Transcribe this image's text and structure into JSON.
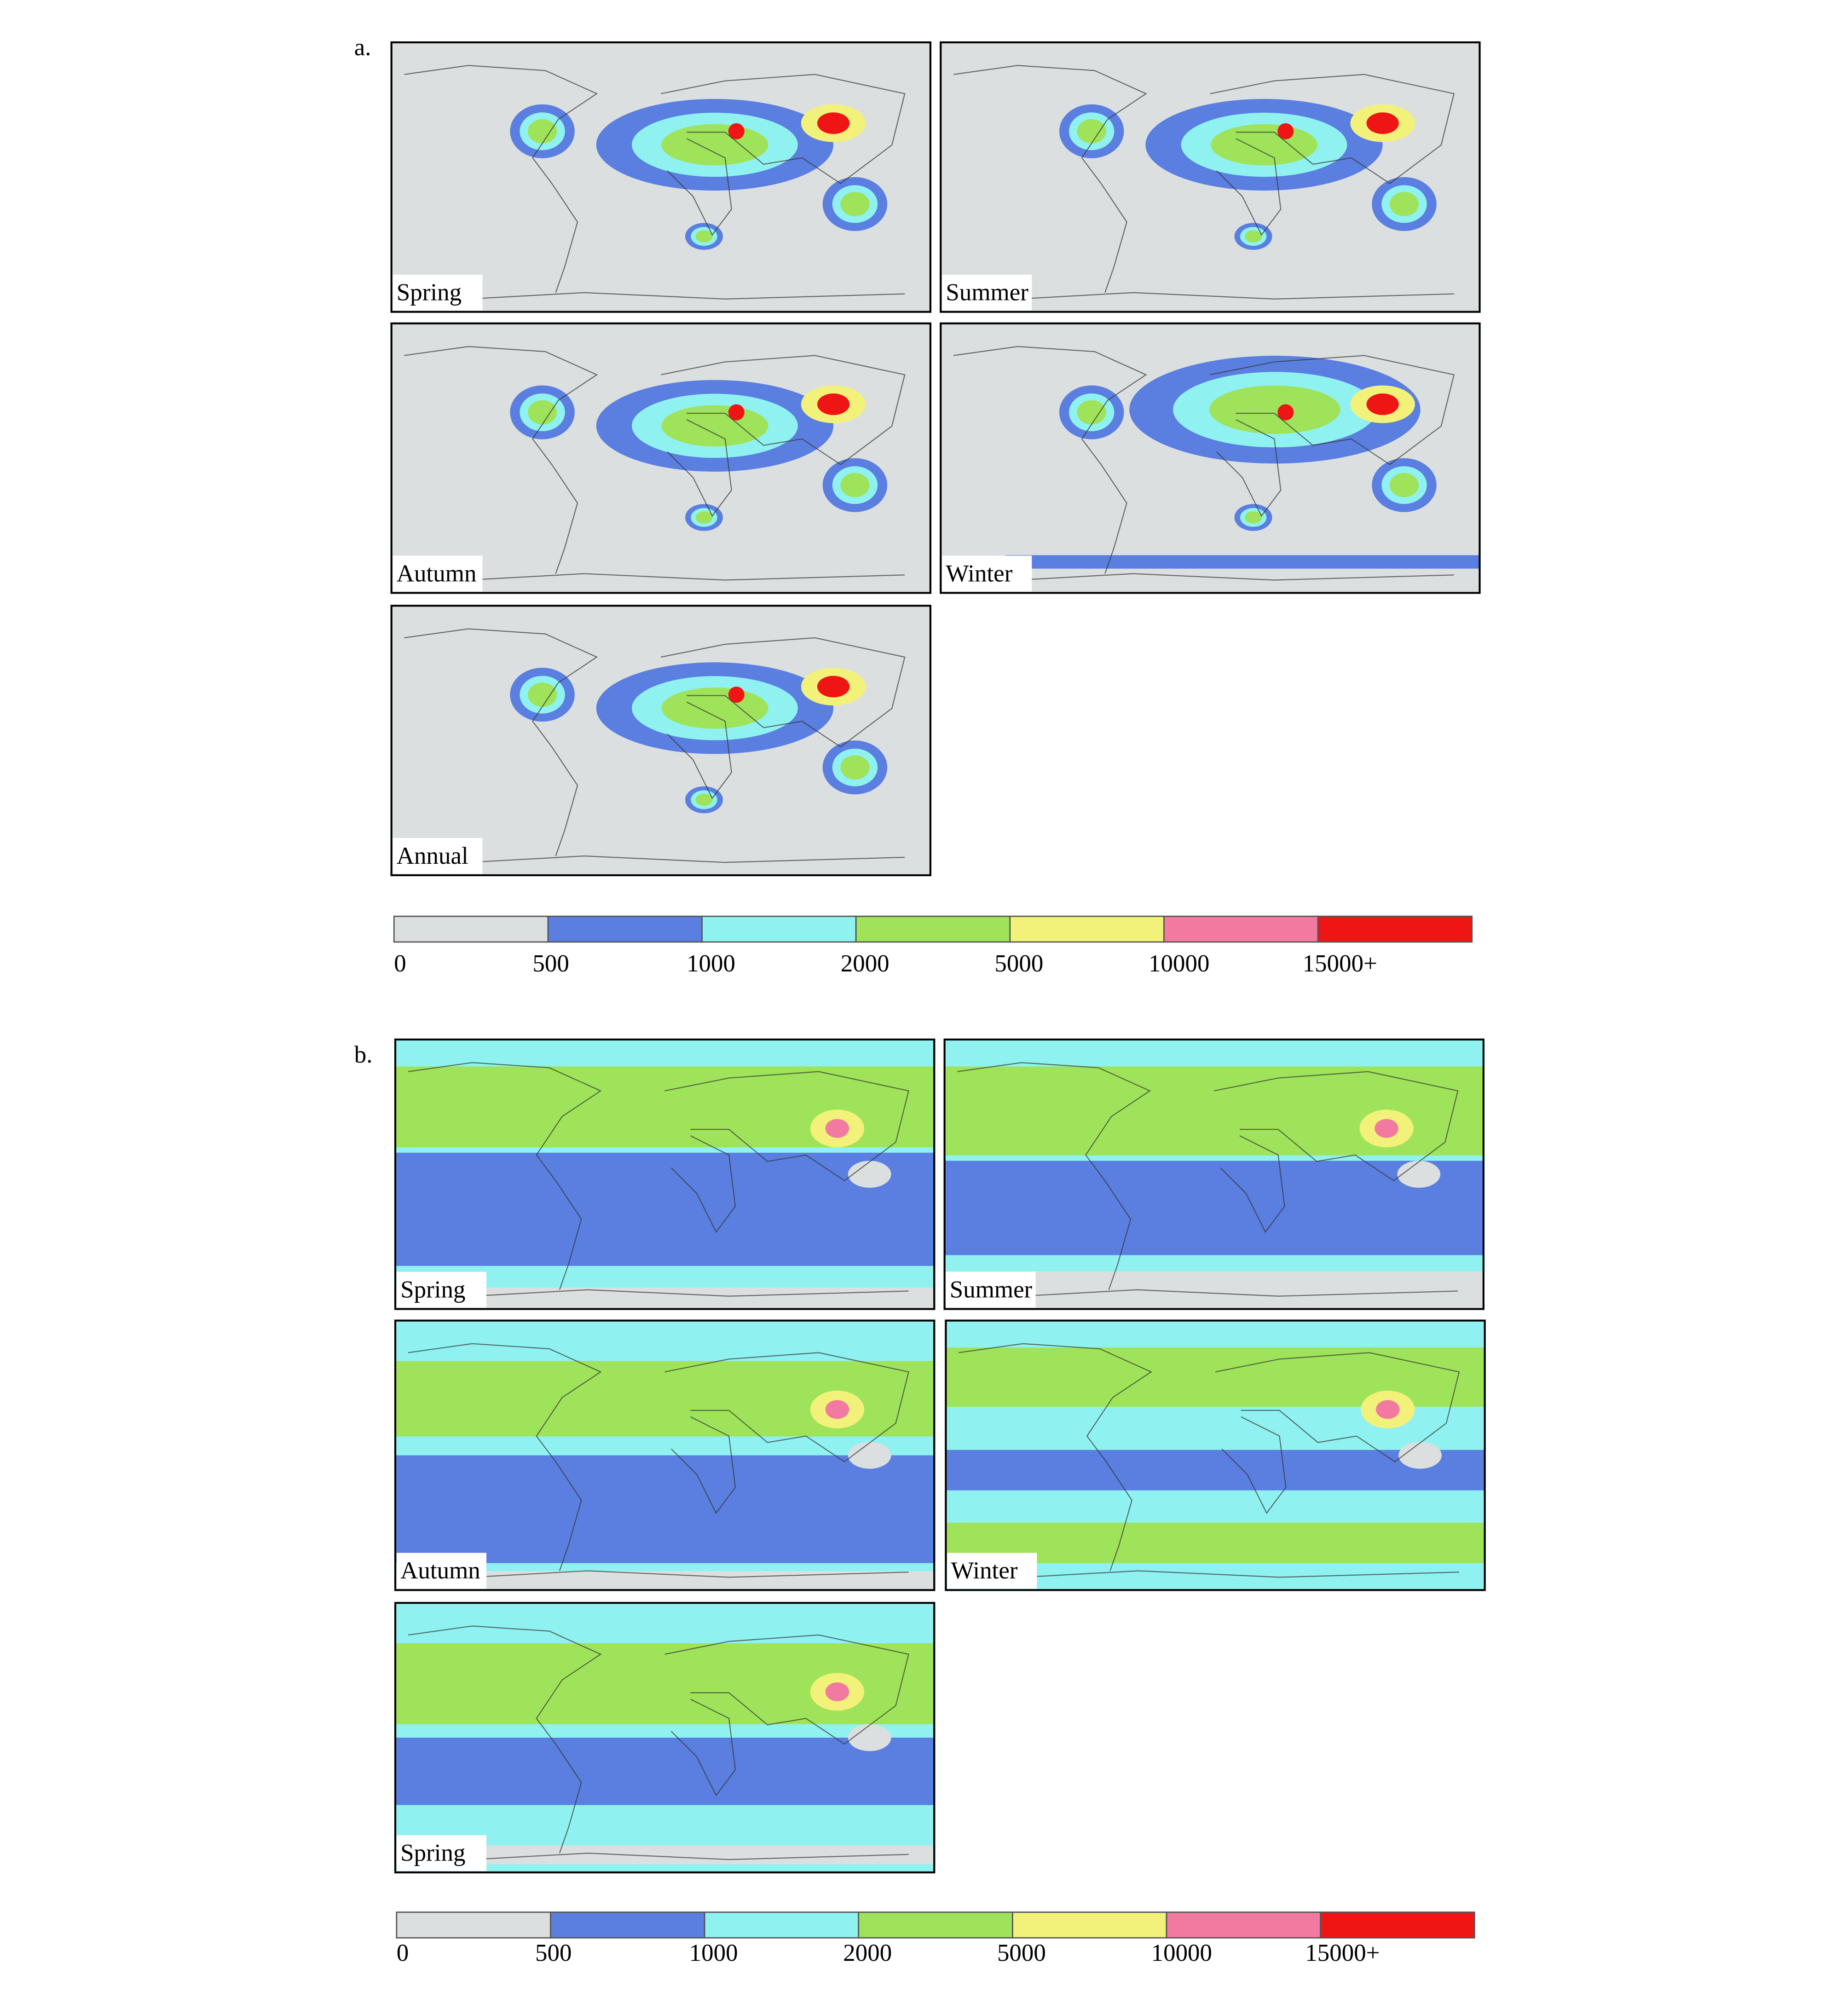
{
  "panels": [
    {
      "label": "a.",
      "maps": [
        {
          "label": "Spring"
        },
        {
          "label": "Summer"
        },
        {
          "label": "Autumn"
        },
        {
          "label": "Winter"
        },
        {
          "label": "Annual"
        }
      ],
      "legend": {
        "labels": [
          "0",
          "500",
          "1000",
          "2000",
          "5000",
          "10000",
          "15000+"
        ],
        "colors": [
          "#dcdfe0",
          "#5a7fe0",
          "#8ff2f0",
          "#9fe35a",
          "#f2f27a",
          "#f27aa0",
          "#f01515"
        ]
      }
    },
    {
      "label": "b.",
      "maps": [
        {
          "label": "Spring"
        },
        {
          "label": "Summer"
        },
        {
          "label": "Autumn"
        },
        {
          "label": "Winter"
        },
        {
          "label": "Spring"
        }
      ],
      "legend": {
        "labels": [
          "0",
          "500",
          "1000",
          "2000",
          "5000",
          "10000",
          "15000+"
        ],
        "colors": [
          "#dcdfe0",
          "#5a7fe0",
          "#8ff2f0",
          "#9fe35a",
          "#f2f27a",
          "#f27aa0",
          "#f01515"
        ]
      }
    }
  ]
}
